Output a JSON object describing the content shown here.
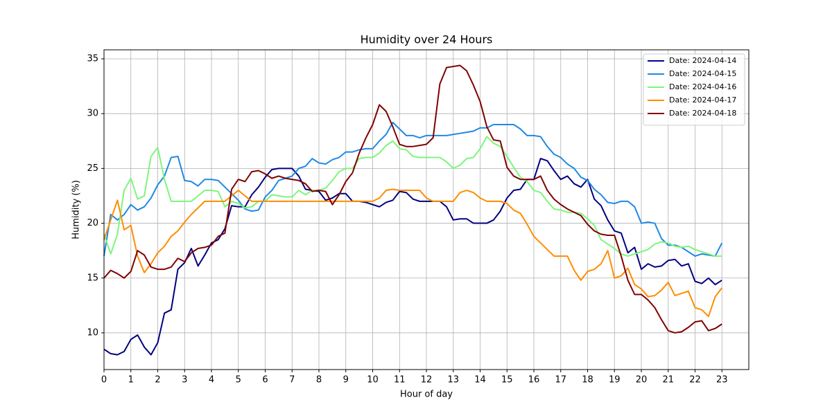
{
  "chart_data": {
    "type": "line",
    "title": "Humidity over 24 Hours",
    "xlabel": "Hour of day",
    "ylabel": "Humidity (%)",
    "x": [
      0,
      0.25,
      0.5,
      0.75,
      1,
      1.25,
      1.5,
      1.75,
      2,
      2.25,
      2.5,
      2.75,
      3,
      3.25,
      3.5,
      3.75,
      4,
      4.25,
      4.5,
      4.75,
      5,
      5.25,
      5.5,
      5.75,
      6,
      6.25,
      6.5,
      6.75,
      7,
      7.25,
      7.5,
      7.75,
      8,
      8.25,
      8.5,
      8.75,
      9,
      9.25,
      9.5,
      9.75,
      10,
      10.25,
      10.5,
      10.75,
      11,
      11.25,
      11.5,
      11.75,
      12,
      12.25,
      12.5,
      12.75,
      13,
      13.25,
      13.5,
      13.75,
      14,
      14.25,
      14.5,
      14.75,
      15,
      15.25,
      15.5,
      15.75,
      16,
      16.25,
      16.5,
      16.75,
      17,
      17.25,
      17.5,
      17.75,
      18,
      18.25,
      18.5,
      18.75,
      19,
      19.25,
      19.5,
      19.75,
      20,
      20.25,
      20.5,
      20.75,
      21,
      21.25,
      21.5,
      21.75,
      22,
      22.25,
      22.5,
      22.75,
      23
    ],
    "series": [
      {
        "name": "Date: 2024-04-14",
        "color": "#000080",
        "values": [
          8.5,
          8.1,
          8.0,
          8.3,
          9.4,
          9.8,
          8.7,
          8.0,
          9.1,
          11.8,
          12.1,
          15.8,
          16.4,
          17.7,
          16.1,
          17.1,
          18.2,
          18.5,
          19.5,
          21.6,
          21.5,
          21.5,
          22.6,
          23.3,
          24.2,
          24.9,
          25.0,
          25.0,
          25.0,
          24.3,
          23.1,
          23.0,
          22.9,
          22.1,
          22.3,
          22.7,
          22.7,
          22.0,
          22.0,
          21.9,
          21.7,
          21.5,
          21.9,
          22.1,
          22.9,
          22.8,
          22.2,
          22.0,
          22.0,
          22.0,
          22.0,
          21.5,
          20.3,
          20.4,
          20.4,
          20.0,
          20.0,
          20.0,
          20.3,
          21.1,
          22.3,
          23.0,
          23.1,
          24.0,
          24.0,
          25.9,
          25.7,
          24.8,
          24.0,
          24.3,
          23.6,
          23.3,
          24.0,
          22.2,
          21.6,
          20.3,
          19.3,
          19.1,
          17.3,
          17.8,
          15.8,
          16.3,
          16.0,
          16.1,
          16.6,
          16.7,
          16.1,
          16.3,
          14.7,
          14.5,
          15.0,
          14.4,
          14.8
        ]
      },
      {
        "name": "Date: 2024-04-15",
        "color": "#1e88e5",
        "values": [
          17.0,
          20.8,
          20.3,
          20.8,
          21.7,
          21.2,
          21.5,
          22.3,
          23.5,
          24.3,
          26.0,
          26.1,
          23.9,
          23.8,
          23.4,
          24.0,
          24.0,
          23.9,
          23.3,
          22.7,
          22.1,
          21.3,
          21.1,
          21.2,
          22.4,
          23.0,
          23.9,
          24.1,
          24.3,
          25.0,
          25.2,
          25.9,
          25.5,
          25.4,
          25.8,
          26.0,
          26.5,
          26.5,
          26.7,
          26.8,
          26.8,
          27.5,
          28.1,
          29.2,
          28.6,
          28.0,
          28.0,
          27.8,
          28.0,
          28.0,
          28.0,
          28.0,
          28.1,
          28.2,
          28.3,
          28.4,
          28.7,
          28.7,
          29.0,
          29.0,
          29.0,
          29.0,
          28.6,
          28.0,
          28.0,
          27.9,
          27.0,
          26.3,
          26.0,
          25.4,
          25.0,
          24.2,
          23.9,
          23.1,
          22.6,
          21.9,
          21.8,
          22.0,
          22.0,
          21.5,
          20.0,
          20.1,
          20.0,
          18.6,
          18.0,
          18.0,
          17.8,
          17.4,
          17.0,
          17.2,
          17.1,
          17.0,
          18.2
        ]
      },
      {
        "name": "Date: 2024-04-16",
        "color": "#7cf57c",
        "values": [
          19.0,
          17.2,
          19.0,
          23.0,
          24.1,
          22.2,
          22.5,
          26.1,
          26.9,
          24.0,
          22.0,
          22.0,
          22.0,
          22.0,
          22.5,
          23.0,
          23.0,
          22.9,
          21.5,
          22.0,
          21.8,
          21.4,
          21.5,
          22.0,
          22.0,
          22.6,
          22.5,
          22.4,
          22.4,
          23.0,
          22.6,
          23.0,
          23.0,
          23.2,
          23.9,
          24.7,
          25.0,
          25.0,
          25.9,
          26.0,
          26.0,
          26.4,
          27.1,
          27.5,
          26.8,
          26.7,
          26.1,
          26.0,
          26.0,
          26.0,
          26.0,
          25.6,
          25.0,
          25.3,
          25.9,
          26.0,
          26.8,
          27.9,
          27.3,
          27.0,
          26.1,
          25.1,
          24.2,
          23.8,
          23.0,
          22.8,
          22.0,
          21.3,
          21.2,
          21.0,
          21.0,
          20.9,
          20.4,
          19.8,
          18.5,
          18.1,
          17.7,
          17.2,
          17.0,
          17.2,
          17.4,
          17.6,
          18.1,
          18.3,
          18.2,
          17.9,
          17.8,
          17.9,
          17.6,
          17.4,
          17.2,
          17.0,
          17.0
        ]
      },
      {
        "name": "Date: 2024-04-17",
        "color": "#ff8c00",
        "values": [
          18.5,
          20.3,
          22.1,
          19.4,
          19.8,
          17.0,
          15.5,
          16.3,
          17.3,
          17.9,
          18.8,
          19.3,
          20.1,
          20.8,
          21.4,
          22.0,
          22.0,
          22.0,
          22.0,
          22.5,
          23.0,
          22.5,
          22.0,
          22.0,
          22.0,
          22.0,
          22.0,
          22.0,
          22.0,
          22.0,
          22.0,
          22.0,
          22.0,
          22.0,
          22.0,
          22.0,
          22.0,
          22.0,
          22.0,
          22.0,
          22.0,
          22.3,
          23.0,
          23.1,
          23.0,
          23.0,
          23.0,
          23.0,
          22.3,
          22.0,
          22.0,
          22.0,
          22.0,
          22.8,
          23.0,
          22.8,
          22.3,
          22.0,
          22.0,
          22.0,
          21.8,
          21.2,
          20.9,
          19.9,
          18.8,
          18.2,
          17.6,
          17.0,
          17.0,
          17.0,
          15.7,
          14.8,
          15.6,
          15.8,
          16.3,
          17.5,
          15.0,
          15.2,
          15.9,
          14.4,
          14.0,
          13.3,
          13.4,
          13.9,
          14.6,
          13.4,
          13.6,
          13.8,
          12.3,
          12.1,
          11.5,
          13.3,
          14.1
        ]
      },
      {
        "name": "Date: 2024-04-18",
        "color": "#800000",
        "values": [
          15.0,
          15.7,
          15.4,
          15.0,
          15.6,
          17.5,
          17.1,
          16.0,
          15.8,
          15.8,
          16.0,
          16.8,
          16.5,
          17.3,
          17.7,
          17.8,
          18.0,
          18.8,
          19.1,
          23.1,
          24.0,
          23.8,
          24.7,
          24.8,
          24.5,
          24.1,
          24.3,
          24.1,
          24.0,
          23.9,
          23.6,
          22.9,
          23.0,
          22.9,
          21.7,
          22.6,
          23.8,
          24.6,
          26.4,
          27.8,
          29.0,
          30.8,
          30.2,
          28.8,
          27.2,
          27.0,
          27.0,
          27.1,
          27.2,
          27.8,
          32.7,
          34.2,
          34.3,
          34.4,
          33.9,
          32.6,
          31.1,
          28.8,
          27.6,
          27.5,
          25.1,
          24.3,
          24.0,
          24.0,
          24.0,
          24.3,
          23.0,
          22.2,
          21.7,
          21.3,
          21.0,
          20.7,
          19.9,
          19.3,
          19.0,
          18.9,
          18.9,
          17.0,
          14.8,
          13.5,
          13.5,
          13.0,
          12.3,
          11.2,
          10.2,
          10.0,
          10.1,
          10.5,
          11.0,
          11.1,
          10.2,
          10.4,
          10.8
        ]
      }
    ],
    "xlim": [
      0,
      24
    ],
    "ylim": [
      6.65,
      35.82
    ],
    "xticks": [
      0,
      1,
      2,
      3,
      4,
      5,
      6,
      7,
      8,
      9,
      10,
      11,
      12,
      13,
      14,
      15,
      16,
      17,
      18,
      19,
      20,
      21,
      22,
      23
    ],
    "yticks": [
      10,
      15,
      20,
      25,
      30,
      35
    ],
    "grid": true,
    "legend": "upper right"
  }
}
